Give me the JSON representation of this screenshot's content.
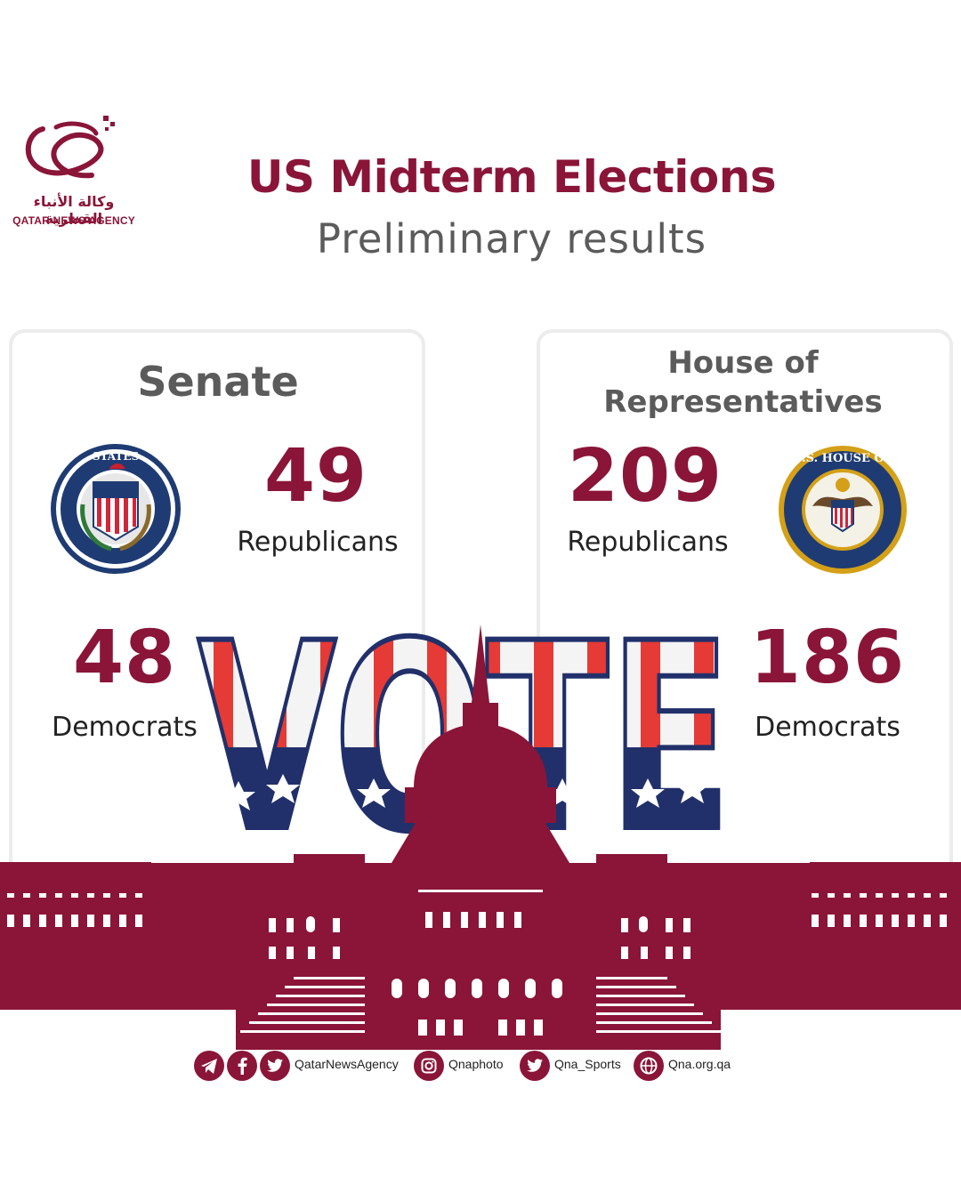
{
  "brand": {
    "name_ar": "وكالة الأنباء القطرية",
    "name_en": "QATAR NEWS AGENCY",
    "color": "#8a1538"
  },
  "header": {
    "title": "US Midterm Elections",
    "subtitle": "Preliminary results"
  },
  "senate": {
    "title": "Senate",
    "republicans": {
      "count": "49",
      "label": "Republicans"
    },
    "democrats": {
      "count": "48",
      "label": "Democrats"
    },
    "seal_icon": "us-senate-seal-icon"
  },
  "house": {
    "title_line1": "House of",
    "title_line2": "Representatives",
    "republicans": {
      "count": "209",
      "label": "Republicans"
    },
    "democrats": {
      "count": "186",
      "label": "Democrats"
    },
    "seal_icon": "us-house-seal-icon"
  },
  "graphic": {
    "vote_word": "VOTE",
    "capitol_icon": "capitol-building-icon"
  },
  "social": {
    "handle1": "QatarNewsAgency",
    "handle2": "Qnaphoto",
    "handle3": "Qna_Sports",
    "website": "Qna.org.qa",
    "icons": [
      "telegram-icon",
      "facebook-icon",
      "twitter-icon",
      "instagram-icon",
      "twitter-icon",
      "globe-icon"
    ]
  }
}
